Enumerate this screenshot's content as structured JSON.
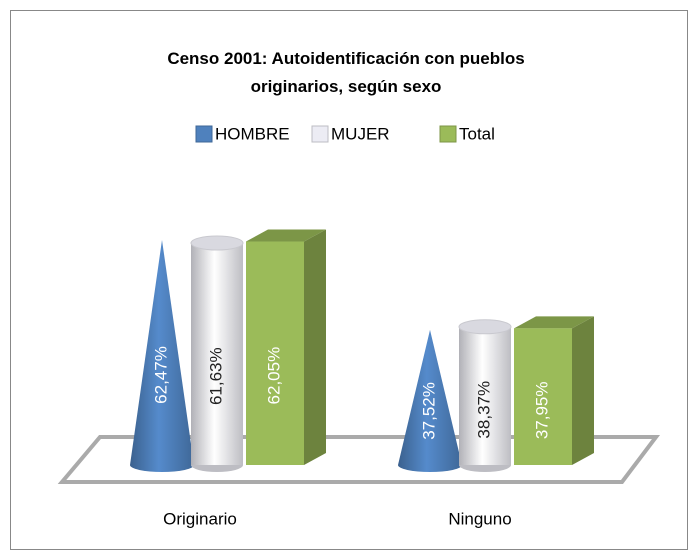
{
  "chart_data": {
    "type": "bar",
    "title": "Censo 2001: Autoidentificación  con pueblos originarios, según sexo",
    "categories": [
      "Originario",
      "Ninguno"
    ],
    "series": [
      {
        "name": "HOMBRE",
        "color": "#4f81bd",
        "shape": "cone",
        "values": [
          62.47,
          37.52
        ],
        "value_labels": [
          "62,47%",
          "37,52%"
        ]
      },
      {
        "name": "MUJER",
        "color": "#ececf4",
        "shape": "cylinder",
        "values": [
          61.63,
          38.37
        ],
        "value_labels": [
          "61,63%",
          "38,37%"
        ]
      },
      {
        "name": "Total",
        "color": "#9bbb59",
        "shape": "box",
        "values": [
          62.05,
          37.95
        ],
        "value_labels": [
          "62,05%",
          "37,95%"
        ]
      }
    ],
    "legend": "top"
  }
}
